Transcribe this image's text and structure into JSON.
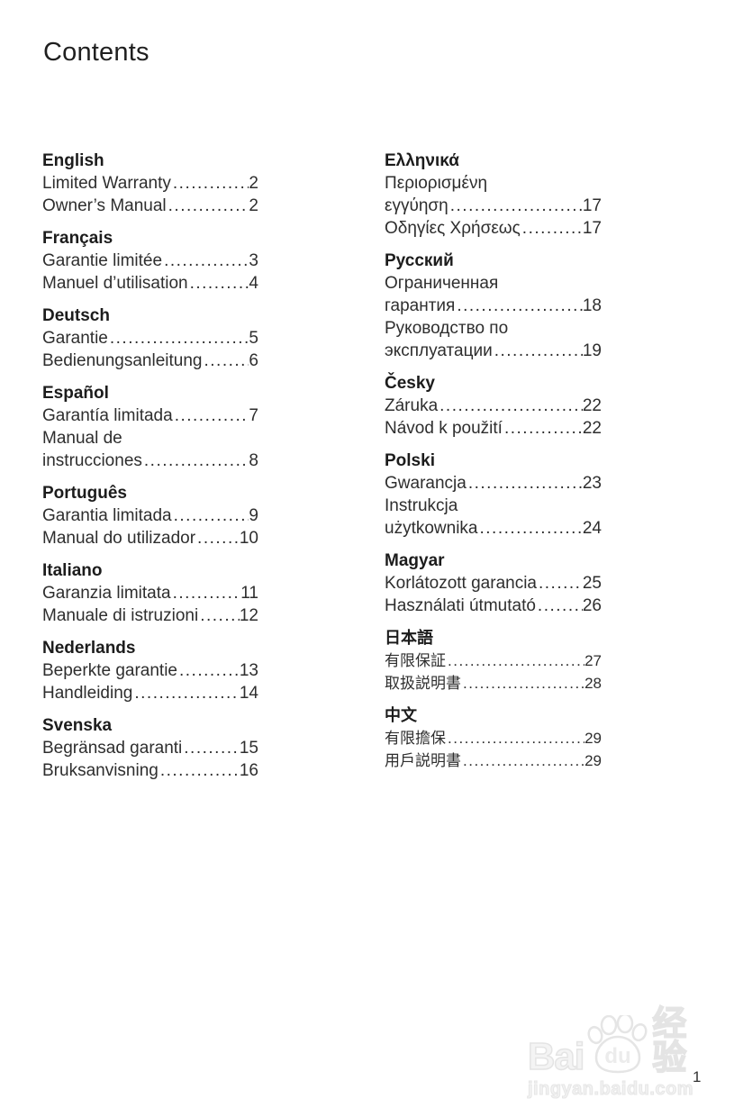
{
  "title": "Contents",
  "page_number": "1",
  "watermark": {
    "brand_prefix": "Bai",
    "brand_suffix": "du",
    "brand_cn": "经验",
    "site": "jingyan.baidu.com",
    "color": "#e9e9e9"
  },
  "toc": {
    "columns": [
      {
        "sections": [
          {
            "title": "English",
            "lines": [
              {
                "text": "Limited Warranty",
                "page": "2"
              },
              {
                "text": "Owner’s Manual",
                "page": "2"
              }
            ]
          },
          {
            "title": "Français",
            "lines": [
              {
                "text": "Garantie limitée",
                "page": "3"
              },
              {
                "text": "Manuel d’utilisation",
                "page": "4"
              }
            ]
          },
          {
            "title": "Deutsch",
            "lines": [
              {
                "text": "Garantie",
                "page": "5"
              },
              {
                "text": "Bedienungsanleitung",
                "page": "6"
              }
            ]
          },
          {
            "title": "Español",
            "lines": [
              {
                "text": "Garantía limitada",
                "page": "7"
              },
              {
                "text": "Manual de"
              },
              {
                "text": "instrucciones",
                "page": "8"
              }
            ]
          },
          {
            "title": "Português",
            "lines": [
              {
                "text": "Garantia limitada",
                "page": "9"
              },
              {
                "text": "Manual do utilizador",
                "page": "10"
              }
            ]
          },
          {
            "title": "Italiano",
            "lines": [
              {
                "text": "Garanzia limitata",
                "page": "11"
              },
              {
                "text": "Manuale di istruzioni",
                "page": "12"
              }
            ]
          },
          {
            "title": "Nederlands",
            "lines": [
              {
                "text": "Beperkte garantie",
                "page": "13"
              },
              {
                "text": "Handleiding",
                "page": "14"
              }
            ]
          },
          {
            "title": "Svenska",
            "lines": [
              {
                "text": "Begränsad garanti",
                "page": "15"
              },
              {
                "text": "Bruksanvisning",
                "page": "16"
              }
            ]
          }
        ]
      },
      {
        "sections": [
          {
            "title": "Ελληνικά",
            "lines": [
              {
                "text": "Περιορισμένη"
              },
              {
                "text": "εγγύηση",
                "page": "17"
              },
              {
                "text": "Οδηγίες Χρήσεως",
                "page": "17"
              }
            ]
          },
          {
            "title": "Русский",
            "lines": [
              {
                "text": "Ограниченная"
              },
              {
                "text": "гарантия",
                "page": "18"
              },
              {
                "text": "Руководство по"
              },
              {
                "text": "эксплуатации",
                "page": "19"
              }
            ]
          },
          {
            "title": "Česky",
            "lines": [
              {
                "text": "Záruka",
                "page": "22"
              },
              {
                "text": "Návod k použití",
                "page": "22"
              }
            ]
          },
          {
            "title": "Polski",
            "lines": [
              {
                "text": "Gwarancja",
                "page": "23"
              },
              {
                "text": "Instrukcja"
              },
              {
                "text": "użytkownika",
                "page": "24"
              }
            ]
          },
          {
            "title": "Magyar",
            "lines": [
              {
                "text": "Korlátozott garancia",
                "page": "25"
              },
              {
                "text": "Használati útmutató",
                "page": "26"
              }
            ]
          },
          {
            "title": "日本語",
            "lines": [
              {
                "text": "有限保証",
                "page": "27"
              },
              {
                "text": "取扱説明書",
                "page": "28"
              }
            ]
          },
          {
            "title": "中文",
            "lines": [
              {
                "text": "有限擔保",
                "page": "29"
              },
              {
                "text": "用戶説明書",
                "page": "29"
              }
            ]
          }
        ]
      }
    ]
  }
}
